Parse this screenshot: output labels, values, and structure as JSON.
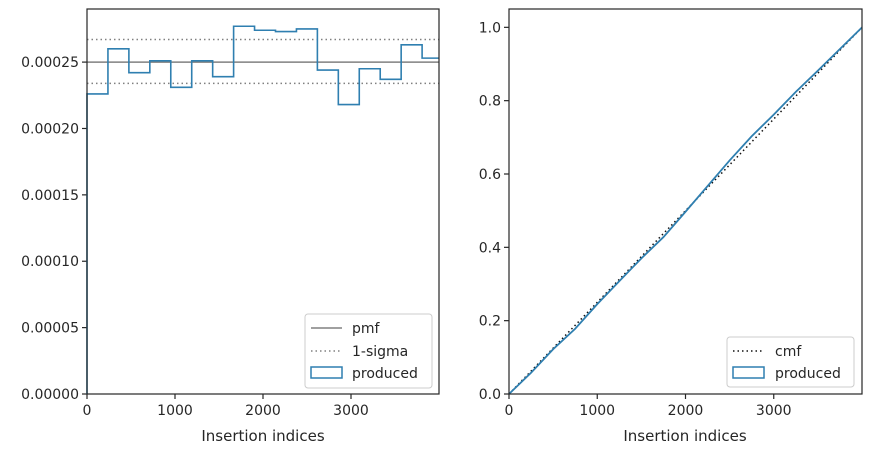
{
  "chart_data": [
    {
      "type": "histogram",
      "xlabel": "Insertion indices",
      "ylabel": "",
      "xlim": [
        0,
        4000
      ],
      "ylim": [
        0,
        0.00029
      ],
      "xticks": [
        0,
        1000,
        2000,
        3000
      ],
      "xtick_labels": [
        "0",
        "1000",
        "2000",
        "3000"
      ],
      "yticks": [
        0,
        5e-05,
        0.0001,
        0.00015,
        0.0002,
        0.00025
      ],
      "ytick_labels": [
        "0.00000",
        "0.00005",
        "0.00010",
        "0.00015",
        "0.00020",
        "0.00025"
      ],
      "legend_position": "lower right",
      "pmf": {
        "name": "pmf",
        "value": 0.00025,
        "color": "#808080"
      },
      "sigma": {
        "name": "1-sigma",
        "lower": 0.000234,
        "upper": 0.000267,
        "color": "#808080"
      },
      "histogram": {
        "name": "produced",
        "color": "#2f7fb0",
        "bin_edges": [
          0,
          238,
          476,
          714,
          952,
          1190,
          1428,
          1666,
          1904,
          2142,
          2380,
          2618,
          2856,
          3094,
          3332,
          3570,
          3808,
          4000
        ],
        "values": [
          0.000226,
          0.00026,
          0.000242,
          0.000251,
          0.000231,
          0.000251,
          0.000239,
          0.000277,
          0.000274,
          0.000273,
          0.000275,
          0.000244,
          0.000218,
          0.000245,
          0.000237,
          0.000263,
          0.000253
        ]
      }
    },
    {
      "type": "line",
      "xlabel": "Insertion indices",
      "ylabel": "",
      "xlim": [
        0,
        4000
      ],
      "ylim": [
        0,
        1.05
      ],
      "xticks": [
        0,
        1000,
        2000,
        3000
      ],
      "xtick_labels": [
        "0",
        "1000",
        "2000",
        "3000"
      ],
      "yticks": [
        0,
        0.2,
        0.4,
        0.6,
        0.8,
        1.0
      ],
      "ytick_labels": [
        "0.0",
        "0.2",
        "0.4",
        "0.6",
        "0.8",
        "1.0"
      ],
      "legend_position": "lower right",
      "series": [
        {
          "name": "cmf",
          "style": "dotted",
          "color": "#111111",
          "x": [
            0,
            4000
          ],
          "y": [
            0,
            1.0
          ]
        },
        {
          "name": "produced",
          "style": "solid",
          "color": "#2f7fb0",
          "x": [
            0,
            250,
            500,
            750,
            1000,
            1250,
            1500,
            1750,
            2000,
            2250,
            2500,
            2750,
            3000,
            3250,
            3500,
            3750,
            4000
          ],
          "y": [
            0,
            0.058,
            0.122,
            0.178,
            0.245,
            0.308,
            0.37,
            0.428,
            0.497,
            0.567,
            0.637,
            0.703,
            0.762,
            0.824,
            0.882,
            0.941,
            1.0
          ]
        }
      ]
    }
  ]
}
